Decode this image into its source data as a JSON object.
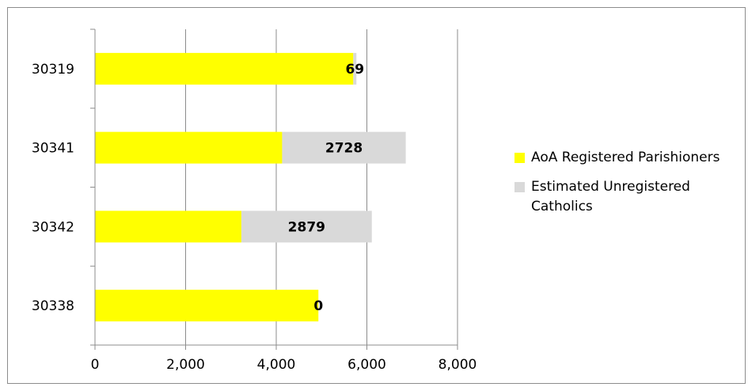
{
  "chart_data": {
    "type": "bar",
    "orientation": "horizontal",
    "stacked": true,
    "categories": [
      "30319",
      "30341",
      "30342",
      "30338"
    ],
    "series": [
      {
        "name": "AoA Registered Parishioners",
        "color": "#ffff00",
        "values": [
          5700,
          4130,
          3230,
          4930
        ]
      },
      {
        "name": "Estimated Unregistered Catholics",
        "color": "#d9d9d9",
        "values": [
          69,
          2728,
          2879,
          0
        ]
      }
    ],
    "data_labels": [
      "69",
      "2728",
      "2879",
      "0"
    ],
    "x_ticks": [
      "0",
      "2,000",
      "4,000",
      "6,000",
      "8,000"
    ],
    "xlim": [
      0,
      8000
    ],
    "grid": "vertical",
    "legend_position": "right"
  }
}
